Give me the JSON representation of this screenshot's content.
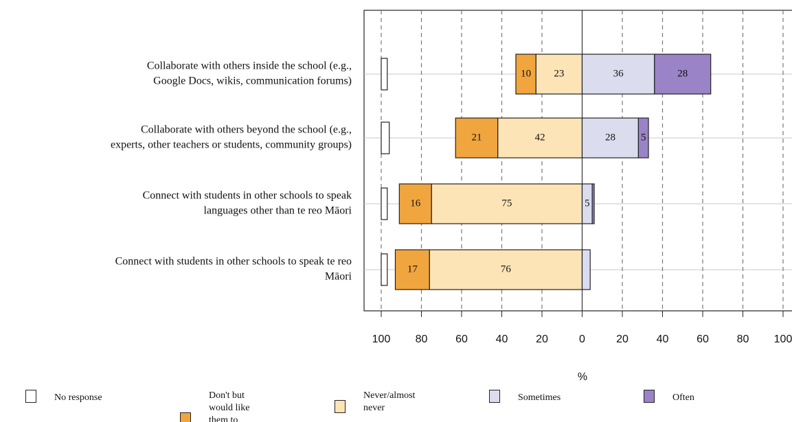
{
  "chart_data": {
    "type": "diverging-bar",
    "x_label": "%",
    "categories": [
      [
        "Collaborate with others inside the school (e.g.,",
        "Google Docs, wikis, communication forums)"
      ],
      [
        "Collaborate with others beyond the school (e.g.,",
        "experts, other teachers or students, community groups)"
      ],
      [
        "Connect with students in other schools to speak",
        "languages other than te reo Māori"
      ],
      [
        "Connect with students in other schools to speak te reo",
        "Māori"
      ]
    ],
    "series": [
      {
        "name": "No response",
        "color": "#ffffff",
        "side": "edge",
        "values": [
          3,
          4,
          3,
          3
        ]
      },
      {
        "name": "Don't but would like them to",
        "color": "#f0a53e",
        "side": "left",
        "values": [
          10,
          21,
          16,
          17
        ]
      },
      {
        "name": "Never/almost never",
        "color": "#fde4b6",
        "side": "left",
        "values": [
          23,
          42,
          75,
          76
        ]
      },
      {
        "name": "Sometimes",
        "color": "#dcdcef",
        "side": "right",
        "values": [
          36,
          28,
          5,
          4
        ]
      },
      {
        "name": "Often",
        "color": "#9a83c6",
        "side": "right",
        "values": [
          28,
          5,
          1,
          0
        ]
      }
    ],
    "xlim": [
      -100,
      100
    ],
    "xticks": [
      {
        "value": -100,
        "label": "100"
      },
      {
        "value": -80,
        "label": "80"
      },
      {
        "value": -60,
        "label": "60"
      },
      {
        "value": -40,
        "label": "40"
      },
      {
        "value": -20,
        "label": "20"
      },
      0,
      20,
      40,
      60,
      80,
      100
    ],
    "grid": true
  }
}
